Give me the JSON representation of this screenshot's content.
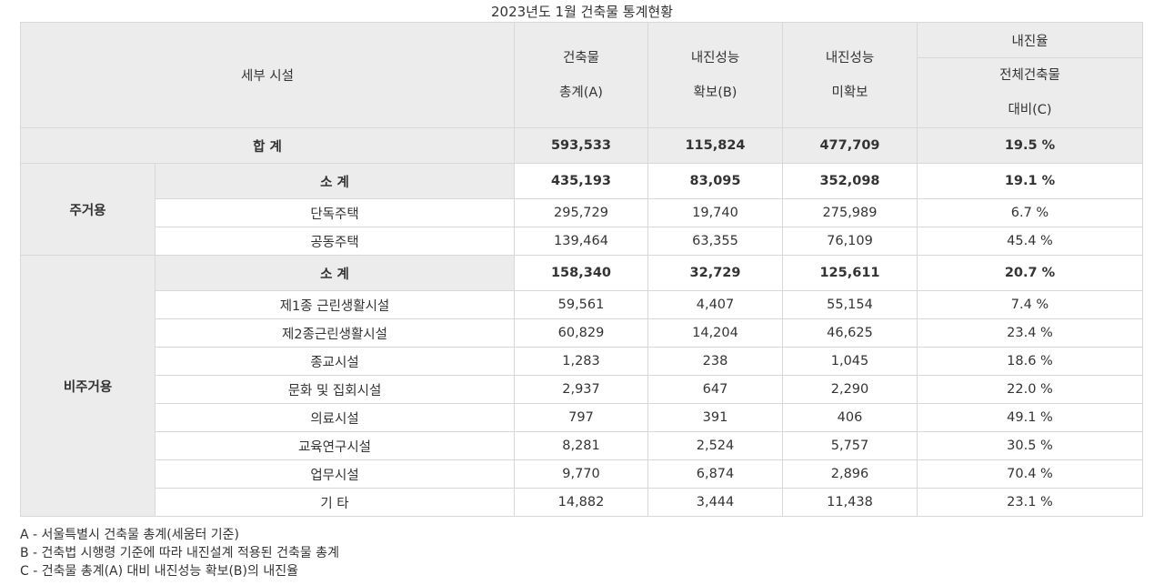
{
  "title": "2023년도 1월 건축물 통계현황",
  "header": {
    "facility": "세부 시설",
    "total_a_line1": "건축물",
    "total_a_line2": "총계(A)",
    "secured_b_line1": "내진성능",
    "secured_b_line2": "확보(B)",
    "unsecured_line1": "내진성능",
    "unsecured_line2": "미확보",
    "rate_group": "내진율",
    "rate_c_line1": "전체건축물",
    "rate_c_line2": "대비(C)"
  },
  "total": {
    "label": "합 계",
    "a": "593,533",
    "b": "115,824",
    "unsecured": "477,709",
    "rate": "19.5 %"
  },
  "residential": {
    "category": "주거용",
    "subtotal": {
      "label": "소 계",
      "a": "435,193",
      "b": "83,095",
      "unsecured": "352,098",
      "rate": "19.1 %"
    },
    "rows": [
      {
        "label": "단독주택",
        "a": "295,729",
        "b": "19,740",
        "unsecured": "275,989",
        "rate": "6.7 %"
      },
      {
        "label": "공동주택",
        "a": "139,464",
        "b": "63,355",
        "unsecured": "76,109",
        "rate": "45.4 %"
      }
    ]
  },
  "non_residential": {
    "category": "비주거용",
    "subtotal": {
      "label": "소 계",
      "a": "158,340",
      "b": "32,729",
      "unsecured": "125,611",
      "rate": "20.7 %"
    },
    "rows": [
      {
        "label": "제1종 근린생활시설",
        "a": "59,561",
        "b": "4,407",
        "unsecured": "55,154",
        "rate": "7.4 %"
      },
      {
        "label": "제2종근린생활시설",
        "a": "60,829",
        "b": "14,204",
        "unsecured": "46,625",
        "rate": "23.4 %"
      },
      {
        "label": "종교시설",
        "a": "1,283",
        "b": "238",
        "unsecured": "1,045",
        "rate": "18.6 %"
      },
      {
        "label": "문화 및 집회시설",
        "a": "2,937",
        "b": "647",
        "unsecured": "2,290",
        "rate": "22.0 %"
      },
      {
        "label": "의료시설",
        "a": "797",
        "b": "391",
        "unsecured": "406",
        "rate": "49.1 %"
      },
      {
        "label": "교육연구시설",
        "a": "8,281",
        "b": "2,524",
        "unsecured": "5,757",
        "rate": "30.5 %"
      },
      {
        "label": "업무시설",
        "a": "9,770",
        "b": "6,874",
        "unsecured": "2,896",
        "rate": "70.4 %"
      },
      {
        "label": "기 타",
        "a": "14,882",
        "b": "3,444",
        "unsecured": "11,438",
        "rate": "23.1 %"
      }
    ]
  },
  "notes": [
    "A - 서울특별시 건축물 총계(세움터 기준)",
    "B - 건축법 시행령 기준에 따라 내진설계 적용된 건축물 총계",
    "C - 건축물 총계(A) 대비 내진성능 확보(B)의 내진율"
  ]
}
